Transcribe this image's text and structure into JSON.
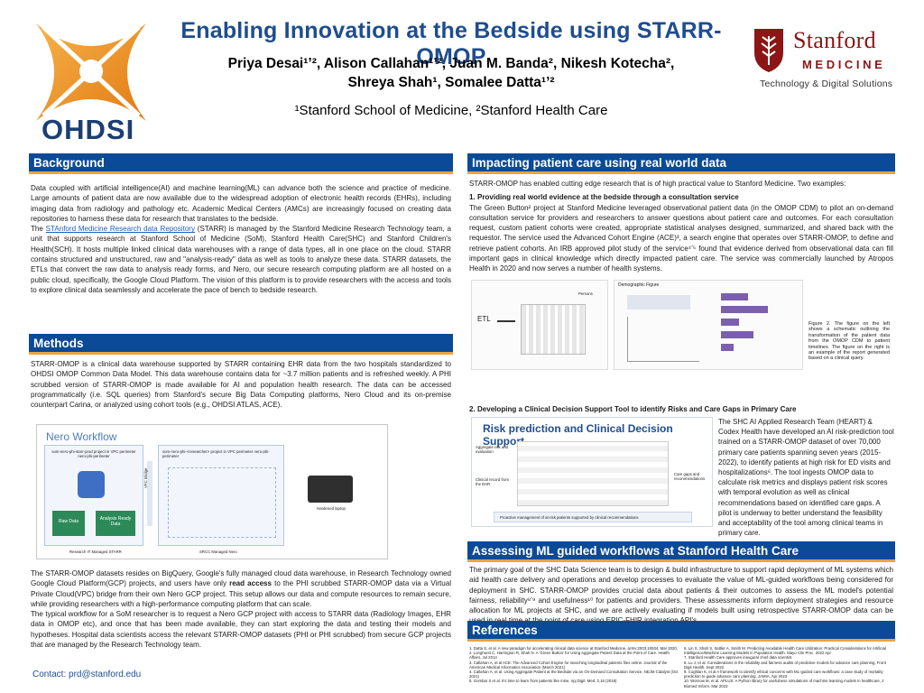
{
  "header": {
    "title": "Enabling Innovation at the Bedside using STARR-OMOP",
    "author_line1": "Priya Desai¹ʼ², Alison Callahan¹ʼ², Juan M. Banda², Nikesh Kotecha²,",
    "author_line2": "Shreya Shah¹, Somalee Datta¹ʼ²",
    "affiliations": "¹Stanford School of Medicine, ²Stanford Health Care",
    "ohdsi_logo_text": "OHDSI",
    "stanford_name": "Stanford",
    "stanford_sub": "MEDICINE",
    "stanford_dept": "Technology & Digital Solutions"
  },
  "background": {
    "heading": "Background",
    "p1": "Data coupled with artificial intelligence(AI) and machine learning(ML) can advance both the science and practice of medicine. Large amounts of patient data are now available due to the widespread adoption of electronic health records (EHRs), including imaging data from radiology and pathology etc. Academic Medical Centers (AMCs) are increasingly focused on creating data repositories to harness these data for research that translates to the bedside.",
    "p2_prefix": "The ",
    "p2_link": "STAnford Medicine Research data Repository",
    "p2_rest": " (STARR) is managed by the Stanford Medicine Research Technology team, a unit that supports research at Stanford School of Medicine (SoM), Stanford Health Care(SHC) and Stanford Children's Health(SCH). It hosts multiple linked clinical data warehouses with a range of data types, all in one place on the cloud.  STARR contains structured and unstructured, raw and \"analysis-ready\" data as well as tools to analyze these data. STARR datasets, the ETLs that convert the raw data to analysis ready forms, and Nero, our secure research computing platform are all hosted on a public cloud, specifically, the Google Cloud Platform. The vision of this platform is to provide researchers with the access and tools to explore clinical data seamlessly and accelerate the pace of bench to bedside research."
  },
  "methods": {
    "heading": "Methods",
    "p1": "STARR-OMOP is a clinical data warehouse supported by STARR containing EHR data from the two hospitals standardized to OHDSI OMOP Common Data Model. This data warehouse contains data for ~3.7 million patients and is refreshed weekly. A PHI scrubbed version of STARR-OMOP is made available for AI and population health research. The data can be accessed programmatically (i.e. SQL queries) from Stanford's secure Big Data Computing platforms, Nero Cloud and its on-premise counterpart Carina, or analyzed using cohort tools (e.g., OHDSI ATLAS, ACE).",
    "p2_a": "The STARR-OMOP datasets resides on BigQuery, Google's fully managed cloud data warehouse, in Research Technology owned  Google Cloud Platform(GCP) projects, and users have only ",
    "p2_bold": "read access",
    "p2_b": " to the PHI scrubbed STARR-OMOP data via a Virtual Private Cloud(VPC) bridge from their own Nero GCP project. This setup allows our data and compute resources to remain secure, while providing researchers with a high-performance computing platform that can scale.",
    "p3": "The typical workflow for a SoM researcher is to request a Nero GCP project with access to STARR data (Radiology Images, EHR data in OMOP etc), and once that has been made available, they can start exploring the data and testing their models and hypotheses. Hospital data scientists access the relevant STARR-OMOP datasets (PHI or PHI scrubbed) from secure GCP projects that are managed by the Research Technology team.",
    "contact": "Contact: prd@stanford.edu"
  },
  "nero_diagram": {
    "title": "Nero Workflow",
    "proj_left": "som-nero-phi-starr-prod project in VPC perimeter nero-phi-perimeter",
    "proj_right": "som-nero-phi-<researcher> project in VPC perimeter nero-phi-perimeter",
    "vpc_label": "VPC Bridge",
    "raw_data": "Raw Data",
    "analysis_ready": "Analysis Ready Data",
    "laptop": "Hardened laptop",
    "footer_left": "Research IT Managed STARR",
    "footer_right": "SRCC Managed Nero"
  },
  "impact": {
    "heading": "Impacting patient care using real world data",
    "intro": "STARR-OMOP has enabled cutting edge research that is of high practical value to Stanford Medicine. Two examples:",
    "sub1": "1. Providing real world evidence at the bedside through a consultation service",
    "p1": "The Green Button² project at Stanford Medicine leveraged observational patient data (in the OMOP CDM) to pilot an on-demand consultation service for providers and researchers to answer questions about patient care and outcomes. For each consultation request, custom patient cohorts were created, appropriate statistical analyses designed, summarized, and shared back with the requestor. The service used the Advanced Cohort Engine (ACE)³, a search engine that operates over STARR-OMOP, to define and retrieve patient cohorts. An IRB approved pilot study of the service⁴ʼ⁵ found that evidence derived from observational data can fill important gaps in clinical knowledge which directly impacted patient care. The service was commercially launched by Atropos Health in 2020 and now serves a number of health systems.",
    "fig_etl": "ETL",
    "fig_persons": "Persons",
    "fig_demo": "Demographic Figure",
    "fig_caption": "Figure 2.  The figure on the left shows a schematic outlining the transformation of the patient data from the OMOP CDM to patient timelines. The figure on the right is an example of the report generated based on a clinical query.",
    "sub2": "2. Developing a Clinical Decision Support Tool to identify Risks and Care Gaps in Primary Care",
    "cds_title": "Risk prediction and Clinical Decision Support",
    "cds_left1": "Aggregate risk and evaluation",
    "cds_left2": "Clinical record from the EHR",
    "cds_right": "Care gaps and recommendations",
    "cds_bottom": "Proactive management of at-risk patients supported by clinical recommendations",
    "p2": "The SHC AI Applied Research Team (HEART) & Codex Health have developed an AI risk-prediction tool trained on a STARR-OMOP dataset of over 70,000 primary care patients spanning seven years (2015-2022), to identify patients at high risk for ED visits and hospitalizations⁶. The tool ingests OMOP data to calculate risk metrics and displays patient risk scores with temporal evolution as well as clinical recommendations based on identified care gaps. A pilot is underway to better understand the feasibility and acceptability of the tool among clinical teams in primary care."
  },
  "ml": {
    "heading": "Assessing ML guided workflows at Stanford Health Care",
    "p1": "The primary goal of the SHC Data Science team is to design & build infrastructure to support rapid deployment of ML systems which aid health care delivery and operations and develop processes to evaluate the value of ML-guided workflows being considered for deployment in SHC. STARR-OMOP provides crucial data about patients & their outcomes to assess the ML model's potential fairness, reliability⁸ʼ⁹ and usefulness¹⁰ for patients and providers. These assessments inform deployment strategies and resource allocation for ML projects at SHC, and we are actively evaluating if models built using retrospective STARR-OMOP data can be used in real time at the point of care using EPIC-FHIR integration API's."
  },
  "references": {
    "heading": "References",
    "left": [
      "1. Datta S, et al. A new paradigm for accelerating clinical data science at Stanford Medicine, arXiv:2003.10534, Mar 2020,",
      "2. Longhurst C, Harrington R, Shah N. A 'Green Button' for Using Aggregate Patient Data at the Point of Care. Health Affairs, Jul 2014",
      "3. Callahan A, et al ACE: The Advanced Cohort Engine for searching longitudinal patients files online. Journal of the American Medical Informatics Association (March 2021)",
      "4. Callahan A, et al. Using Aggregate Patient at the Bedside via an On-Demand Consultation Service, NEJM Catalyst (Oct 2021)",
      "5. Gombar S et al. It's time to learn from patients like mine, npj Digit. Med. 2,16 (2019)"
    ],
    "right": [
      "6. Lin S, Shah S, Sattler A, Smith M. Predicting Avoidable Health Care Utilization: Practical Considerations for Artificial Intelligence/Machine Learning Models in Population Health. Mayo Clin Proc. 2022 Apr",
      "7. Stanford Health Care approves inaugural chief data scientist",
      "8. Lu J, et al. Considerations in the reliability and fairness audits of predictive models for advance care planning, Front Digit Health, Sept 2022",
      "9. Coghlan K, et al A framework to identify ethical concerns with ML-guided care workflows: a case study of mortality prediction to guide advance care planning, JAMIA, Apr 2023",
      "10. Wornow M, et al. APLUS: A Python library for usefulness simulations of machine learning models in healthcare, J Biomed Inform. Mar 2023"
    ]
  }
}
